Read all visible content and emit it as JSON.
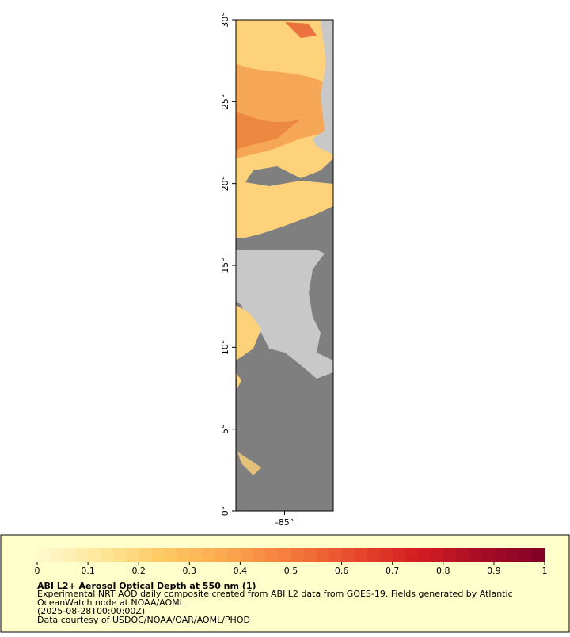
{
  "chart_data": {
    "type": "map",
    "ylim": [
      0,
      30
    ],
    "yticks": [
      {
        "value": 0,
        "label": "0°"
      },
      {
        "value": 5,
        "label": "5°"
      },
      {
        "value": 10,
        "label": "10°"
      },
      {
        "value": 15,
        "label": "15°"
      },
      {
        "value": 20,
        "label": "20°"
      },
      {
        "value": 25,
        "label": "25°"
      },
      {
        "value": 30,
        "label": "30°"
      }
    ],
    "xlim": [
      -88,
      -82
    ],
    "xticks": [
      {
        "value": -85,
        "label": "-85°"
      }
    ],
    "colorbar": {
      "lim": [
        0,
        1
      ],
      "ticks": [
        0,
        0.1,
        0.2,
        0.3,
        0.4,
        0.5,
        0.6,
        0.7,
        0.8,
        0.9,
        1
      ],
      "colors": [
        "#fffad0",
        "#fee79a",
        "#fdc964",
        "#fba650",
        "#f57a3c",
        "#e84a2c",
        "#d41c22",
        "#a80d26",
        "#800026"
      ]
    },
    "title": "ABI L2+ Aerosol Optical Depth at 550 nm (1)",
    "description": [
      "Experimental NRT AOD daily composite created from ABI L2 data from GOES-19. Fields generated by Atlantic",
      "OceanWatch node at NOAA/AOML",
      "(2025-08-28T00:00:00Z)",
      "Data courtesy of USDOC/NOAA/OAR/AOML/PHOD"
    ]
  }
}
